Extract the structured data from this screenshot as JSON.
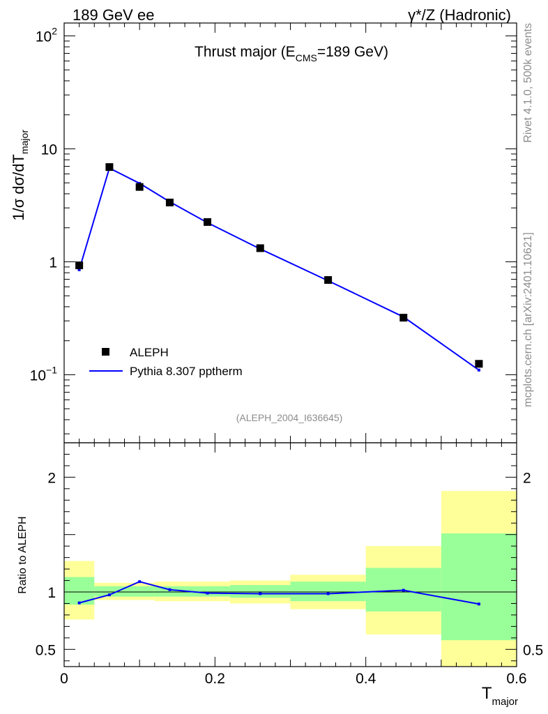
{
  "header": {
    "left": "189 GeV ee",
    "right": "γ*/Z (Hadronic)"
  },
  "side_labels": {
    "rivet": "Rivet 4.1.0,  500k events",
    "mcplots": "mcplots.cern.ch [arXiv:2401.10621]"
  },
  "chart_data": [
    {
      "type": "scatter",
      "scale": "log",
      "title_main": "Thrust major (E",
      "title_sub": "CMS",
      "title_tail": "=189 GeV)",
      "ylabel_main": "1/σ  dσ/dT",
      "ylabel_sub": "major",
      "analysis_tag": "(ALEPH_2004_I636645)",
      "xlim": [
        0,
        0.6
      ],
      "ylim": [
        0.025,
        130
      ],
      "y_ticks": [
        {
          "value": 0.1,
          "base": "10",
          "exp": "−1"
        },
        {
          "value": 1,
          "base": "1",
          "exp": ""
        },
        {
          "value": 10,
          "base": "10",
          "exp": ""
        },
        {
          "value": 100,
          "base": "10",
          "exp": "2"
        }
      ],
      "legend": {
        "data_label": "ALEPH",
        "mc_label": "Pythia 8.307 pptherm",
        "placement": "lower-left"
      },
      "series": [
        {
          "name": "ALEPH",
          "style": "markers",
          "x": [
            0.02,
            0.06,
            0.1,
            0.14,
            0.19,
            0.26,
            0.35,
            0.45,
            0.55
          ],
          "values": [
            0.93,
            6.9,
            4.6,
            3.35,
            2.25,
            1.32,
            0.69,
            0.32,
            0.125
          ]
        },
        {
          "name": "Pythia 8.307 pptherm",
          "style": "line",
          "color": "#0000ff",
          "x": [
            0.02,
            0.06,
            0.1,
            0.14,
            0.19,
            0.26,
            0.35,
            0.45,
            0.55
          ],
          "values": [
            0.85,
            6.75,
            4.95,
            3.4,
            2.22,
            1.3,
            0.68,
            0.325,
            0.11
          ]
        }
      ]
    },
    {
      "type": "line",
      "ylabel": "Ratio to ALEPH",
      "xlabel_main": "T",
      "xlabel_sub": "major",
      "xlim": [
        0,
        0.6
      ],
      "ylim": [
        0.35,
        2.3
      ],
      "x_ticks": [
        "0",
        "0.2",
        "0.4",
        "0.6"
      ],
      "x_tick_values": [
        0,
        0.2,
        0.4,
        0.6
      ],
      "y_ticks": [
        "0.5",
        "1",
        "2"
      ],
      "y_tick_values": [
        0.5,
        1,
        2
      ],
      "reference_line": 1,
      "band_colors": {
        "inner": "#99ff99",
        "outer": "#ffff99",
        "line": "#0000ff"
      },
      "bands": [
        {
          "x_lo": 0.0,
          "x_hi": 0.04,
          "inner": [
            0.89,
            1.13
          ],
          "outer": [
            0.76,
            1.27
          ]
        },
        {
          "x_lo": 0.04,
          "x_hi": 0.08,
          "inner": [
            0.96,
            1.05
          ],
          "outer": [
            0.93,
            1.08
          ]
        },
        {
          "x_lo": 0.08,
          "x_hi": 0.12,
          "inner": [
            0.96,
            1.05
          ],
          "outer": [
            0.93,
            1.08
          ]
        },
        {
          "x_lo": 0.12,
          "x_hi": 0.16,
          "inner": [
            0.96,
            1.05
          ],
          "outer": [
            0.92,
            1.09
          ]
        },
        {
          "x_lo": 0.16,
          "x_hi": 0.22,
          "inner": [
            0.96,
            1.05
          ],
          "outer": [
            0.92,
            1.09
          ]
        },
        {
          "x_lo": 0.22,
          "x_hi": 0.3,
          "inner": [
            0.95,
            1.06
          ],
          "outer": [
            0.9,
            1.1
          ]
        },
        {
          "x_lo": 0.3,
          "x_hi": 0.4,
          "inner": [
            0.92,
            1.09
          ],
          "outer": [
            0.85,
            1.15
          ]
        },
        {
          "x_lo": 0.4,
          "x_hi": 0.5,
          "inner": [
            0.83,
            1.21
          ],
          "outer": [
            0.63,
            1.4
          ]
        },
        {
          "x_lo": 0.5,
          "x_hi": 0.6,
          "inner": [
            0.58,
            1.51
          ],
          "outer": [
            0.35,
            1.88
          ]
        }
      ],
      "series": [
        {
          "name": "Pythia 8.307 pptherm / ALEPH",
          "x": [
            0.02,
            0.06,
            0.1,
            0.14,
            0.19,
            0.26,
            0.35,
            0.45,
            0.55
          ],
          "values": [
            0.905,
            0.975,
            1.09,
            1.02,
            0.99,
            0.985,
            0.985,
            1.015,
            0.895
          ]
        }
      ]
    }
  ]
}
